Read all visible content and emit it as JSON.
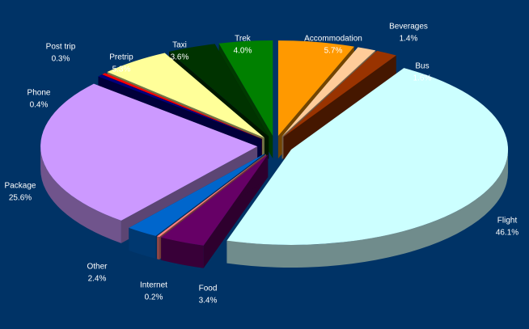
{
  "chart_data": {
    "type": "pie3d",
    "categories": [
      "Accommodation",
      "Beverages",
      "Bus",
      "Flight",
      "Food",
      "Internet",
      "Other",
      "Package",
      "Phone",
      "Post trip",
      "Pretrip",
      "Taxi",
      "Trek"
    ],
    "values": [
      5.7,
      1.4,
      1.6,
      46.1,
      3.4,
      0.2,
      2.4,
      25.6,
      0.4,
      0.3,
      5.3,
      3.6,
      4.0
    ],
    "value_labels": [
      "5.7%",
      "1.4%",
      "1.6%",
      "46.1%",
      "3.4%",
      "0.2%",
      "2.4%",
      "25.6%",
      "0.4%",
      "0.3%",
      "5.3%",
      "3.6%",
      "4.0%"
    ],
    "colors": [
      "#ff9900",
      "#ffcc99",
      "#993300",
      "#ccffff",
      "#660066",
      "#ff8080",
      "#0066cc",
      "#cc99ff",
      "#000080",
      "#ff0000",
      "#ffff99",
      "#003300",
      "#008000"
    ]
  }
}
